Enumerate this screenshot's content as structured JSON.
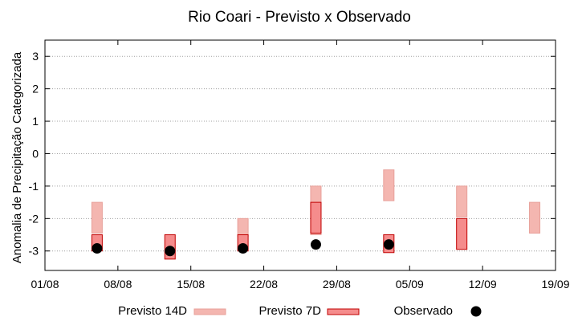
{
  "chart_data": {
    "type": "bar",
    "title": "Rio Coari - Previsto x Observado",
    "xlabel": "",
    "ylabel": "Anomalia de Precipitação Categorizada",
    "x_ticks": [
      "01/08",
      "08/08",
      "15/08",
      "22/08",
      "29/08",
      "05/09",
      "12/09",
      "19/09"
    ],
    "y_ticks": [
      "3",
      "2",
      "1",
      "0",
      "-1",
      "-2",
      "-3"
    ],
    "xlim": [
      "2023-08-01",
      "2023-09-19"
    ],
    "ylim": [
      -3.6,
      3.5
    ],
    "grid": "horizontal dotted",
    "legend_position": "bottom",
    "series": [
      {
        "name": "Previsto 14D",
        "kind": "range",
        "color": "#f4b6b0",
        "edge": "#e8a09a",
        "points": [
          {
            "date": "2023-08-06",
            "low": -2.45,
            "high": -1.5
          },
          {
            "date": "2023-08-20",
            "low": -2.55,
            "high": -2.0
          },
          {
            "date": "2023-08-27",
            "low": -2.5,
            "high": -1.0
          },
          {
            "date": "2023-09-03",
            "low": -1.45,
            "high": -0.5
          },
          {
            "date": "2023-09-10",
            "low": -1.95,
            "high": -1.0
          },
          {
            "date": "2023-09-17",
            "low": -2.45,
            "high": -1.5
          }
        ]
      },
      {
        "name": "Previsto 7D",
        "kind": "range",
        "color": "#f58c8c",
        "edge": "#c00000",
        "points": [
          {
            "date": "2023-08-06",
            "low": -3.0,
            "high": -2.5
          },
          {
            "date": "2023-08-13",
            "low": -3.25,
            "high": -2.5
          },
          {
            "date": "2023-08-20",
            "low": -3.0,
            "high": -2.5
          },
          {
            "date": "2023-08-27",
            "low": -2.45,
            "high": -1.5
          },
          {
            "date": "2023-09-03",
            "low": -3.05,
            "high": -2.5
          },
          {
            "date": "2023-09-10",
            "low": -2.95,
            "high": -2.0
          }
        ]
      },
      {
        "name": "Observado",
        "kind": "point",
        "color": "#000000",
        "points": [
          {
            "date": "2023-08-06",
            "y": -2.92
          },
          {
            "date": "2023-08-13",
            "y": -3.0
          },
          {
            "date": "2023-08-20",
            "y": -2.92
          },
          {
            "date": "2023-08-27",
            "y": -2.8
          },
          {
            "date": "2023-09-03",
            "y": -2.8
          }
        ]
      }
    ]
  }
}
